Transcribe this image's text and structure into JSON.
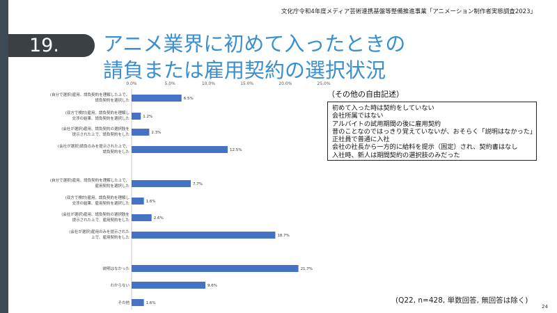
{
  "header": {
    "text": "文化庁令和4年度メディア芸術連携基盤等整備推進事業「アニメーション制作者実態調査2023」"
  },
  "slide": {
    "number": "19.",
    "title_line1": "アニメ業界に初めて入ったときの",
    "title_line2": "請負または雇用契約の選択状況"
  },
  "chart_data": {
    "type": "bar",
    "orientation": "horizontal",
    "x_ticks": [
      "0.0%",
      "5.0%",
      "10.0%",
      "15.0%",
      "20.0%",
      "25.0%"
    ],
    "xlim": [
      0,
      25
    ],
    "categories": [
      [
        "(自分で選択)雇用、請負契約を理解した上で、",
        "請負契約を選択した"
      ],
      [
        "(双方で検討)雇用、請負契約を理解し",
        "交渉の結果、請負契約を選択した"
      ],
      [
        "(会社が選択)雇用、請負契約の選択肢を",
        "提示された上で、請負契約をした"
      ],
      [
        "(会社が選択)請負のみを提示された上で、",
        "請負契約をした"
      ],
      [
        "(自分で選択)雇用、請負契約を理解した上で、",
        "雇用契約を選択した"
      ],
      [
        "(双方で検討)雇用、請負契約を理解し",
        "交渉の結果、雇用契約を選択した"
      ],
      [
        "(会社が選択)雇用、請負契約の選択肢を",
        "提示された上で、雇用契約をした"
      ],
      [
        "(会社が選択)雇用のみを提示された",
        "上で、雇用契約をした"
      ],
      [
        "説明はなかった"
      ],
      [
        "わからない"
      ],
      [
        "その他"
      ]
    ],
    "values": [
      6.5,
      1.2,
      2.3,
      12.5,
      7.7,
      1.6,
      2.6,
      18.7,
      21.7,
      9.6,
      1.6
    ],
    "value_labels": [
      "6.5%",
      "1.2%",
      "2.3%",
      "12.5%",
      "7.7%",
      "1.6%",
      "2.6%",
      "18.7%",
      "21.7%",
      "9.6%",
      "1.6%"
    ],
    "bar_color": "#4472c4",
    "grid": false
  },
  "other": {
    "heading": "（その他の自由記述）",
    "items": [
      "初めて入った時は契約をしていない",
      "会社所属ではない",
      "アルバイトの試用期間の後に雇用契約",
      "昔のことなのではっきり覚えていないが、おそらく「説明はなかった」",
      "正社員で普通に入社",
      "会社の社長から一方的に給料を提示（固定）され、契約書はなし",
      "入社時、新人は期間契約の選択肢のみだった"
    ]
  },
  "footnote": "(Q22, n=428, 単数回答, 無回答は除く)",
  "page_number": "24"
}
